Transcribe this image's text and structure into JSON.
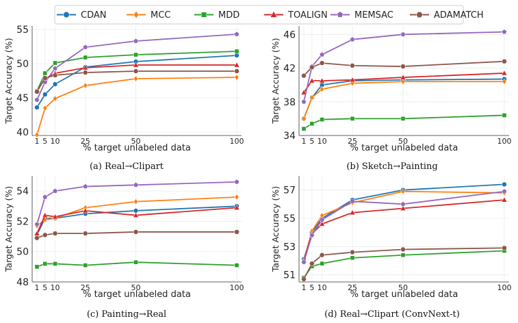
{
  "legend": {
    "entries": [
      {
        "name": "CDAN",
        "color": "#1f77b4",
        "marker": "circle"
      },
      {
        "name": "MCC",
        "color": "#ff7f0e",
        "marker": "diamond"
      },
      {
        "name": "MDD",
        "color": "#2ca02c",
        "marker": "square"
      },
      {
        "name": "TOALIGN",
        "color": "#d62728",
        "marker": "triangle"
      },
      {
        "name": "MEMSAC",
        "color": "#9467bd",
        "marker": "pentagon"
      },
      {
        "name": "ADAMATCH",
        "color": "#8c564b",
        "marker": "hexagon"
      }
    ],
    "placement": "top-center"
  },
  "chart_data": [
    {
      "type": "line",
      "caption": "(a) Real→Clipart",
      "xlabel": "% target unlabeled data",
      "ylabel": "Target Accuracy (%)",
      "x": [
        1,
        5,
        10,
        25,
        50,
        100
      ],
      "xticks": [
        "1",
        "5",
        "10",
        "25",
        "50",
        "100"
      ],
      "ylim": [
        39.5,
        55.5
      ],
      "yticks": [
        "40",
        "45",
        "50",
        "55"
      ],
      "ytick_values": [
        40,
        45,
        50,
        55
      ],
      "grid": true,
      "series": [
        {
          "name": "CDAN",
          "values": [
            43.6,
            45.5,
            47.0,
            49.5,
            50.3,
            51.2
          ]
        },
        {
          "name": "MCC",
          "values": [
            39.6,
            43.5,
            44.9,
            46.8,
            47.8,
            48.0
          ]
        },
        {
          "name": "MDD",
          "values": [
            46.0,
            48.6,
            50.1,
            50.9,
            51.3,
            51.8
          ]
        },
        {
          "name": "TOALIGN",
          "values": [
            46.0,
            47.8,
            48.6,
            49.4,
            49.8,
            49.8
          ]
        },
        {
          "name": "MEMSAC",
          "values": [
            44.7,
            47.3,
            49.3,
            52.4,
            53.3,
            54.3
          ]
        },
        {
          "name": "ADAMATCH",
          "values": [
            45.9,
            47.9,
            48.3,
            48.7,
            48.9,
            48.9
          ]
        }
      ]
    },
    {
      "type": "line",
      "caption": "(b) Sketch→Painting",
      "xlabel": "% target unlabeled data",
      "ylabel": "Target Accuracy (%)",
      "x": [
        1,
        5,
        10,
        25,
        50,
        100
      ],
      "xticks": [
        "1",
        "5",
        "10",
        "25",
        "50",
        "100"
      ],
      "ylim": [
        34,
        47
      ],
      "yticks": [
        "34",
        "38",
        "42",
        "46"
      ],
      "ytick_values": [
        34,
        38,
        42,
        46
      ],
      "grid": true,
      "series": [
        {
          "name": "CDAN",
          "values": [
            36.0,
            38.5,
            40.0,
            40.5,
            40.6,
            40.7
          ]
        },
        {
          "name": "MCC",
          "values": [
            36.0,
            38.5,
            39.5,
            40.2,
            40.4,
            40.4
          ]
        },
        {
          "name": "MDD",
          "values": [
            34.8,
            35.4,
            35.9,
            36.0,
            36.0,
            36.4
          ]
        },
        {
          "name": "TOALIGN",
          "values": [
            39.1,
            40.5,
            40.5,
            40.6,
            40.9,
            41.4
          ]
        },
        {
          "name": "MEMSAC",
          "values": [
            38.0,
            42.2,
            43.6,
            45.4,
            46.0,
            46.3
          ]
        },
        {
          "name": "ADAMATCH",
          "values": [
            41.1,
            42.1,
            42.6,
            42.3,
            42.2,
            42.8
          ]
        }
      ]
    },
    {
      "type": "line",
      "caption": "(c) Painting→Real",
      "xlabel": "% target unlabeled data",
      "ylabel": "Target Accuracy (%)",
      "x": [
        1,
        5,
        10,
        25,
        50,
        100
      ],
      "xticks": [
        "1",
        "5",
        "10",
        "25",
        "50",
        "100"
      ],
      "ylim": [
        48,
        55
      ],
      "yticks": [
        "48",
        "50",
        "52",
        "54"
      ],
      "ytick_values": [
        48,
        50,
        52,
        54
      ],
      "grid": true,
      "series": [
        {
          "name": "CDAN",
          "values": [
            51.1,
            52.2,
            52.2,
            52.5,
            52.7,
            53.0
          ]
        },
        {
          "name": "MCC",
          "values": [
            51.7,
            52.1,
            52.2,
            52.9,
            53.3,
            53.6
          ]
        },
        {
          "name": "MDD",
          "values": [
            49.0,
            49.2,
            49.2,
            49.1,
            49.3,
            49.1
          ]
        },
        {
          "name": "TOALIGN",
          "values": [
            51.2,
            52.4,
            52.3,
            52.7,
            52.4,
            52.9
          ]
        },
        {
          "name": "MEMSAC",
          "values": [
            51.8,
            53.6,
            54.0,
            54.3,
            54.4,
            54.6
          ]
        },
        {
          "name": "ADAMATCH",
          "values": [
            50.9,
            51.1,
            51.2,
            51.2,
            51.3,
            51.3
          ]
        }
      ]
    },
    {
      "type": "line",
      "caption": "(d) Real→Clipart (ConvNext-t)",
      "xlabel": "% target unlabeled data",
      "ylabel": "Target Accuracy (%)",
      "x": [
        1,
        5,
        10,
        25,
        50,
        100
      ],
      "xticks": [
        "1",
        "5",
        "10",
        "25",
        "50",
        "100"
      ],
      "ylim": [
        50.5,
        58
      ],
      "yticks": [
        "51",
        "53",
        "55",
        "57"
      ],
      "ytick_values": [
        51,
        53,
        55,
        57
      ],
      "grid": true,
      "series": [
        {
          "name": "CDAN",
          "values": [
            52.1,
            54.0,
            55.0,
            56.3,
            57.0,
            57.4
          ]
        },
        {
          "name": "MCC",
          "values": [
            52.0,
            54.1,
            55.2,
            56.1,
            56.9,
            56.8
          ]
        },
        {
          "name": "MDD",
          "values": [
            50.8,
            51.6,
            51.8,
            52.2,
            52.4,
            52.7
          ]
        },
        {
          "name": "TOALIGN",
          "values": [
            52.0,
            53.9,
            54.6,
            55.4,
            55.7,
            56.3
          ]
        },
        {
          "name": "MEMSAC",
          "values": [
            51.9,
            53.8,
            54.9,
            56.2,
            56.0,
            56.9
          ]
        },
        {
          "name": "ADAMATCH",
          "values": [
            50.7,
            51.8,
            52.4,
            52.6,
            52.8,
            52.9
          ]
        }
      ]
    }
  ]
}
